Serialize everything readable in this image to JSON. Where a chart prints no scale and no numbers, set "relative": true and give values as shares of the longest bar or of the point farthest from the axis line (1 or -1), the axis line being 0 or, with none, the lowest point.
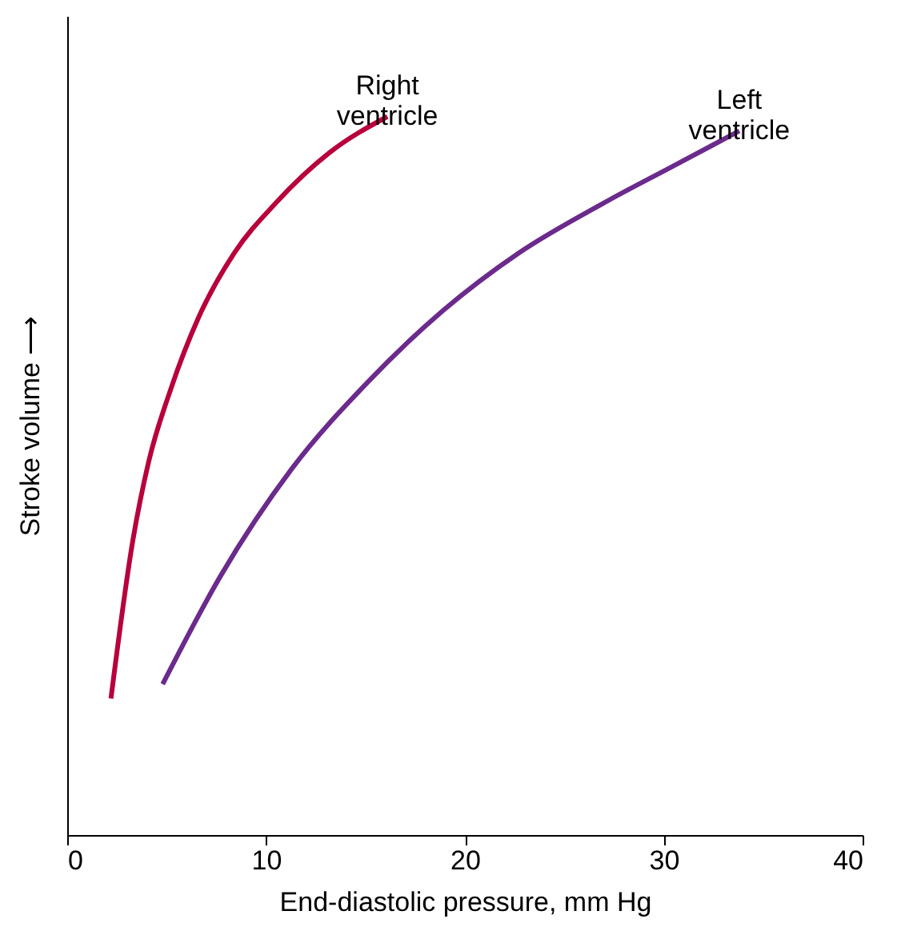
{
  "chart_data": {
    "type": "line",
    "relative": true,
    "xlabel": "End-diastolic pressure, mm Hg",
    "ylabel": "Stroke volume ⟶",
    "xlim": [
      0,
      40
    ],
    "xticks": [
      0,
      10,
      20,
      30,
      40
    ],
    "grid": false,
    "legend": false,
    "marker": "none",
    "line_style": "solid",
    "series": [
      {
        "name": "Right ventricle",
        "color": "#b8003c",
        "x": [
          2.2,
          3.3,
          4.1,
          5.2,
          6.6,
          8.4,
          10.5,
          13.2,
          16.1
        ],
        "values": [
          0.19,
          0.41,
          0.52,
          0.62,
          0.72,
          0.81,
          0.88,
          0.95,
          1.0
        ]
      },
      {
        "name": "Left ventricle",
        "color": "#6b2a8c",
        "x": [
          4.8,
          7.7,
          11.3,
          15.1,
          18.9,
          22.7,
          27.0,
          30.4,
          33.8
        ],
        "values": [
          0.21,
          0.36,
          0.51,
          0.63,
          0.73,
          0.81,
          0.88,
          0.93,
          0.98
        ]
      }
    ]
  }
}
